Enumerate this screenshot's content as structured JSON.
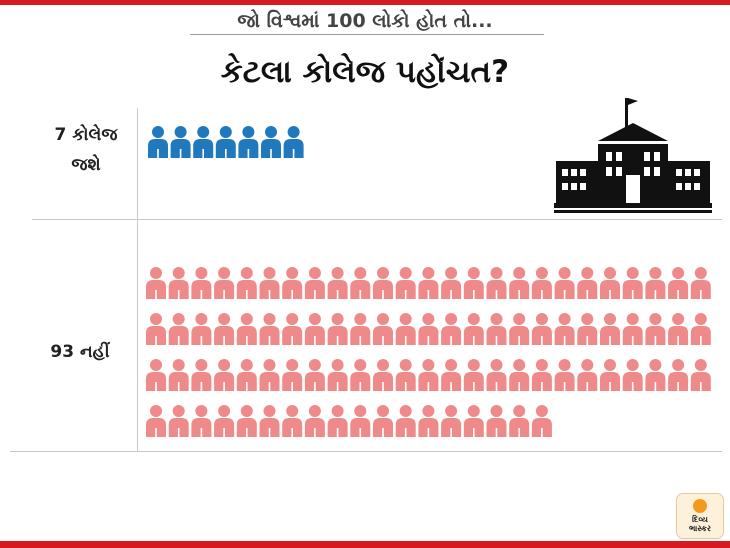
{
  "header": {
    "subtitle": "જો વિશ્વમાં 100 લોકો હોત તો...",
    "title": "કેટલા કોલેજ પહોંચત?"
  },
  "chart_data": {
    "type": "pictogram",
    "categories": [
      "7 કોલેજ જશે",
      "93 નહીં"
    ],
    "values": [
      7,
      93
    ],
    "colors": [
      "#2079bd",
      "#ef8a8a"
    ],
    "icon": "person-icon"
  },
  "building_icon": "school-building-icon",
  "brand": {
    "logo_text_line1": "દિવ્ય",
    "logo_text_line2": "ભાસ્કર"
  }
}
